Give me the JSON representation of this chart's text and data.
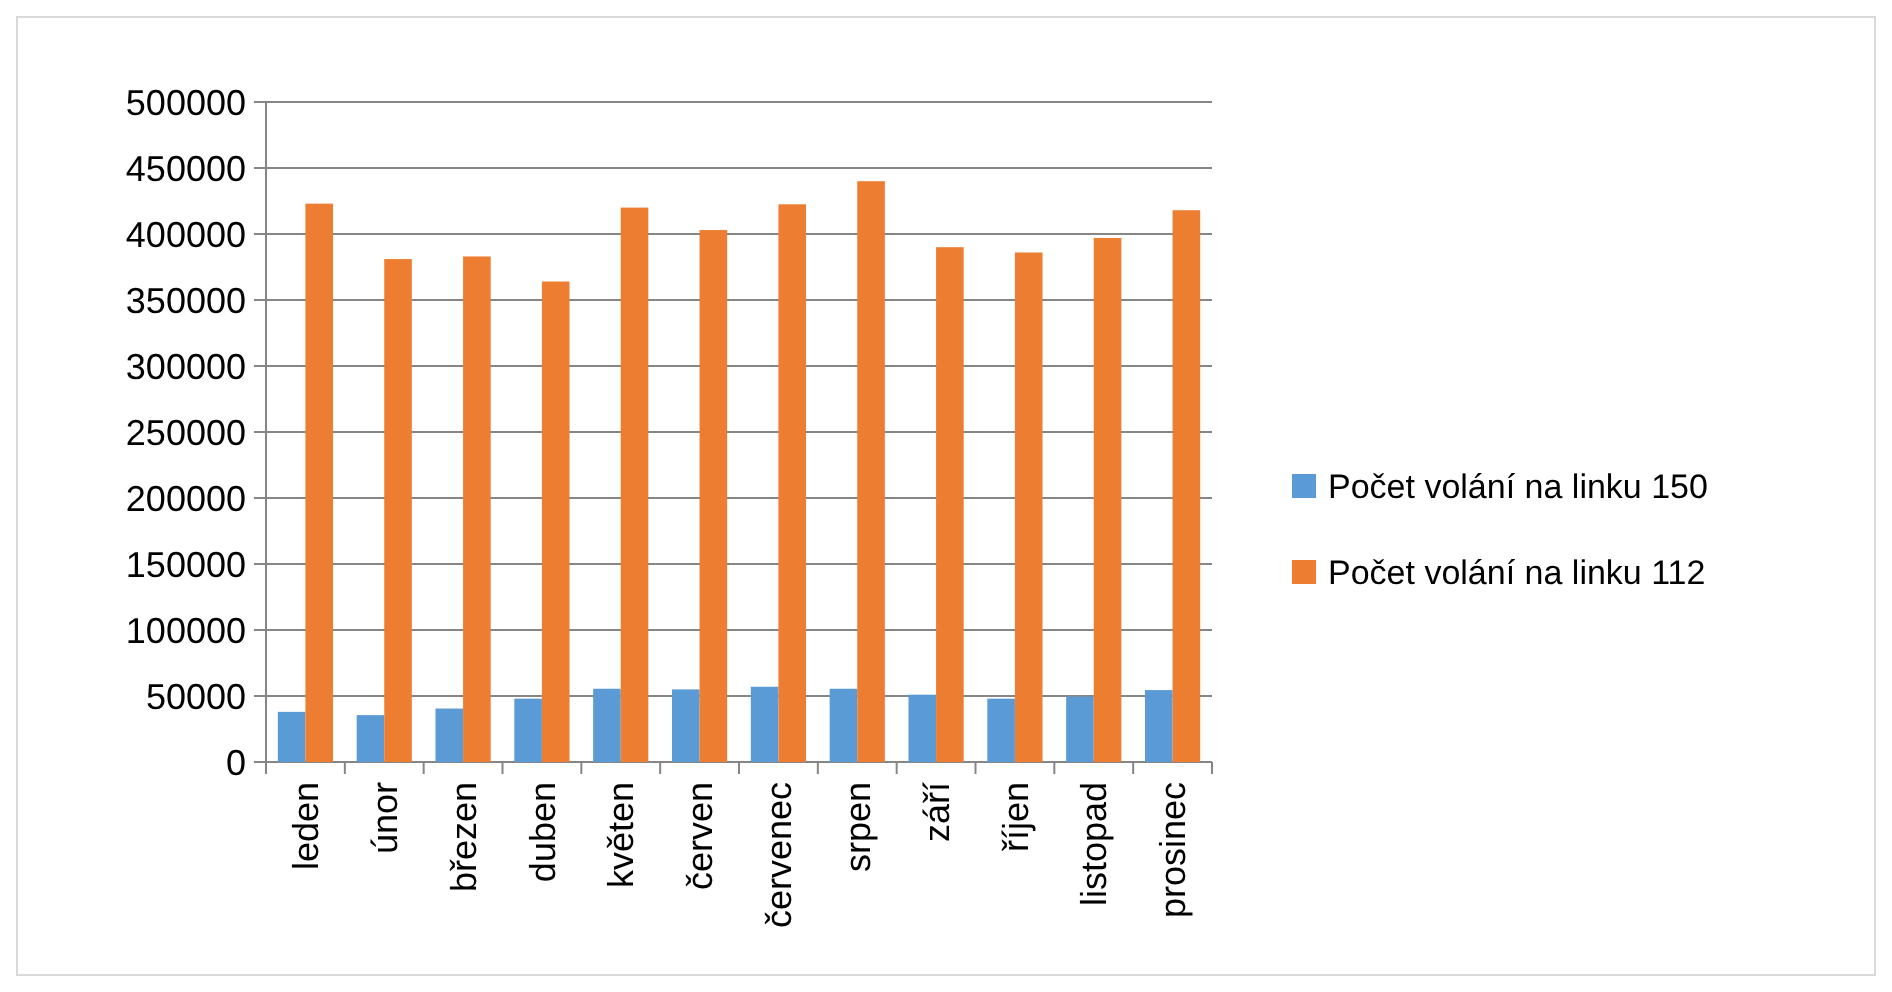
{
  "chart_data": {
    "type": "bar",
    "categories": [
      "leden",
      "únor",
      "březen",
      "duben",
      "květen",
      "červen",
      "červenec",
      "srpen",
      "září",
      "říjen",
      "listopad",
      "prosinec"
    ],
    "series": [
      {
        "name": "Počet volání na linku 150",
        "color": "#5b9bd5",
        "values": [
          38000,
          35500,
          40500,
          48000,
          55500,
          55000,
          57000,
          55500,
          51000,
          48000,
          49500,
          54500
        ]
      },
      {
        "name": "Počet volání na linku 112",
        "color": "#ed7d31",
        "values": [
          423000,
          381000,
          383000,
          364000,
          420000,
          403000,
          422500,
          440000,
          390000,
          386000,
          397000,
          418000
        ]
      }
    ],
    "ylim": [
      0,
      500000
    ],
    "yticks": [
      0,
      50000,
      100000,
      150000,
      200000,
      250000,
      300000,
      350000,
      400000,
      450000,
      500000
    ],
    "grid": "y",
    "legend": "right"
  }
}
